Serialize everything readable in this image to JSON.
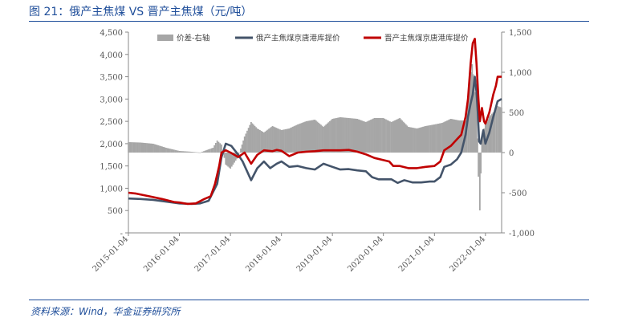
{
  "figure": {
    "title": "图 21：俄产主焦煤 VS 晋产主焦煤（元/吨）",
    "source": "资料来源：Wind，华金证券研究所"
  },
  "chart_data": {
    "type": "line",
    "legend": {
      "position": "top",
      "entries": [
        {
          "name": "价差-右轴",
          "kind": "bar",
          "color": "#a6a6a6"
        },
        {
          "name": "俄产主焦煤京唐港库提价",
          "kind": "line",
          "color": "#44546a"
        },
        {
          "name": "晋产主焦煤京唐港库提价",
          "kind": "line",
          "color": "#c00000"
        }
      ]
    },
    "x_axis": {
      "type": "date",
      "range": [
        "2015-01-04",
        "2022-04-30"
      ],
      "tick_labels": [
        "2015-01-04",
        "2016-01-04",
        "2017-01-04",
        "2018-01-04",
        "2019-01-04",
        "2020-01-04",
        "2021-01-04",
        "2022-01-04"
      ]
    },
    "y_axis_left": {
      "range": [
        0,
        4500
      ],
      "tick_labels": [
        "-",
        "500",
        "1,000",
        "1,500",
        "2,000",
        "2,500",
        "3,000",
        "3,500",
        "4,000",
        "4,500"
      ]
    },
    "y_axis_right": {
      "range": [
        -1000,
        1500
      ],
      "tick_labels": [
        "-1,000",
        "-500",
        "0",
        "500",
        "1,000",
        "1,500"
      ]
    },
    "grid": false,
    "series": [
      {
        "name": "俄产主焦煤京唐港库提价",
        "axis": "left",
        "color": "#44546a",
        "points": [
          [
            "2015-01-04",
            770
          ],
          [
            "2015-04-01",
            760
          ],
          [
            "2015-07-01",
            740
          ],
          [
            "2015-10-01",
            700
          ],
          [
            "2016-01-04",
            660
          ],
          [
            "2016-04-01",
            650
          ],
          [
            "2016-06-01",
            660
          ],
          [
            "2016-08-01",
            720
          ],
          [
            "2016-10-01",
            1100
          ],
          [
            "2016-11-01",
            1700
          ],
          [
            "2016-12-01",
            2000
          ],
          [
            "2017-01-10",
            1950
          ],
          [
            "2017-03-01",
            1750
          ],
          [
            "2017-04-01",
            1600
          ],
          [
            "2017-06-01",
            1180
          ],
          [
            "2017-07-15",
            1450
          ],
          [
            "2017-09-01",
            1600
          ],
          [
            "2017-10-15",
            1450
          ],
          [
            "2017-12-01",
            1550
          ],
          [
            "2018-01-04",
            1600
          ],
          [
            "2018-03-01",
            1480
          ],
          [
            "2018-05-01",
            1500
          ],
          [
            "2018-07-01",
            1450
          ],
          [
            "2018-09-01",
            1420
          ],
          [
            "2018-11-01",
            1550
          ],
          [
            "2019-01-04",
            1480
          ],
          [
            "2019-03-01",
            1420
          ],
          [
            "2019-05-01",
            1430
          ],
          [
            "2019-07-01",
            1400
          ],
          [
            "2019-09-01",
            1380
          ],
          [
            "2019-10-15",
            1250
          ],
          [
            "2019-12-01",
            1200
          ],
          [
            "2020-01-04",
            1200
          ],
          [
            "2020-03-01",
            1200
          ],
          [
            "2020-04-15",
            1120
          ],
          [
            "2020-06-01",
            1180
          ],
          [
            "2020-08-01",
            1130
          ],
          [
            "2020-10-01",
            1130
          ],
          [
            "2020-12-01",
            1150
          ],
          [
            "2021-01-04",
            1150
          ],
          [
            "2021-02-15",
            1250
          ],
          [
            "2021-03-15",
            1480
          ],
          [
            "2021-05-01",
            1530
          ],
          [
            "2021-06-15",
            1650
          ],
          [
            "2021-07-15",
            1800
          ],
          [
            "2021-08-15",
            2200
          ],
          [
            "2021-09-01",
            2600
          ],
          [
            "2021-09-20",
            2900
          ],
          [
            "2021-10-05",
            3100
          ],
          [
            "2021-10-20",
            3500
          ],
          [
            "2021-11-01",
            3150
          ],
          [
            "2021-11-10",
            2700
          ],
          [
            "2021-11-20",
            2050
          ],
          [
            "2021-12-01",
            2000
          ],
          [
            "2021-12-20",
            2300
          ],
          [
            "2022-01-04",
            2000
          ],
          [
            "2022-02-01",
            2250
          ],
          [
            "2022-03-01",
            2600
          ],
          [
            "2022-04-01",
            2950
          ],
          [
            "2022-04-30",
            3000
          ]
        ]
      },
      {
        "name": "晋产主焦煤京唐港库提价",
        "axis": "left",
        "color": "#c00000",
        "points": [
          [
            "2015-01-04",
            900
          ],
          [
            "2015-03-01",
            880
          ],
          [
            "2015-06-01",
            820
          ],
          [
            "2015-09-01",
            760
          ],
          [
            "2015-12-01",
            690
          ],
          [
            "2016-01-04",
            680
          ],
          [
            "2016-03-01",
            650
          ],
          [
            "2016-05-01",
            660
          ],
          [
            "2016-07-01",
            760
          ],
          [
            "2016-08-15",
            820
          ],
          [
            "2016-09-15",
            1100
          ],
          [
            "2016-10-15",
            1500
          ],
          [
            "2016-11-01",
            1800
          ],
          [
            "2016-12-01",
            1850
          ],
          [
            "2017-01-04",
            1800
          ],
          [
            "2017-03-01",
            1700
          ],
          [
            "2017-04-15",
            1800
          ],
          [
            "2017-06-01",
            1550
          ],
          [
            "2017-07-15",
            1750
          ],
          [
            "2017-09-01",
            1850
          ],
          [
            "2017-11-01",
            1830
          ],
          [
            "2017-12-01",
            1860
          ],
          [
            "2018-01-04",
            1840
          ],
          [
            "2018-03-01",
            1720
          ],
          [
            "2018-05-01",
            1800
          ],
          [
            "2018-07-01",
            1820
          ],
          [
            "2018-09-01",
            1830
          ],
          [
            "2018-11-01",
            1850
          ],
          [
            "2019-01-04",
            1850
          ],
          [
            "2019-03-01",
            1850
          ],
          [
            "2019-05-01",
            1860
          ],
          [
            "2019-07-01",
            1820
          ],
          [
            "2019-09-01",
            1760
          ],
          [
            "2019-11-01",
            1680
          ],
          [
            "2020-01-04",
            1630
          ],
          [
            "2020-02-15",
            1600
          ],
          [
            "2020-03-15",
            1500
          ],
          [
            "2020-05-01",
            1500
          ],
          [
            "2020-07-01",
            1450
          ],
          [
            "2020-09-01",
            1450
          ],
          [
            "2020-11-01",
            1480
          ],
          [
            "2021-01-04",
            1500
          ],
          [
            "2021-02-15",
            1600
          ],
          [
            "2021-03-15",
            1850
          ],
          [
            "2021-05-01",
            1950
          ],
          [
            "2021-06-15",
            2100
          ],
          [
            "2021-07-15",
            2200
          ],
          [
            "2021-08-15",
            2600
          ],
          [
            "2021-09-01",
            3000
          ],
          [
            "2021-09-20",
            3800
          ],
          [
            "2021-10-05",
            4250
          ],
          [
            "2021-10-20",
            4350
          ],
          [
            "2021-11-01",
            3800
          ],
          [
            "2021-11-15",
            3000
          ],
          [
            "2021-11-25",
            2500
          ],
          [
            "2021-12-10",
            2800
          ],
          [
            "2021-12-25",
            2500
          ],
          [
            "2022-01-04",
            2450
          ],
          [
            "2022-02-01",
            2700
          ],
          [
            "2022-03-01",
            3100
          ],
          [
            "2022-03-20",
            3300
          ],
          [
            "2022-04-01",
            3500
          ],
          [
            "2022-04-30",
            3500
          ]
        ]
      },
      {
        "name": "价差-右轴",
        "type": "bar",
        "axis": "right",
        "color": "#a6a6a6",
        "points": [
          [
            "2015-01-04",
            130
          ],
          [
            "2015-04-01",
            125
          ],
          [
            "2015-07-01",
            110
          ],
          [
            "2015-10-01",
            60
          ],
          [
            "2016-01-04",
            20
          ],
          [
            "2016-04-01",
            10
          ],
          [
            "2016-06-01",
            0
          ],
          [
            "2016-08-01",
            40
          ],
          [
            "2016-09-01",
            60
          ],
          [
            "2016-10-01",
            150
          ],
          [
            "2016-11-01",
            100
          ],
          [
            "2016-12-01",
            -150
          ],
          [
            "2017-01-04",
            -200
          ],
          [
            "2017-03-01",
            -50
          ],
          [
            "2017-04-15",
            200
          ],
          [
            "2017-06-01",
            380
          ],
          [
            "2017-07-15",
            300
          ],
          [
            "2017-09-01",
            250
          ],
          [
            "2017-11-01",
            330
          ],
          [
            "2018-01-04",
            280
          ],
          [
            "2018-03-01",
            300
          ],
          [
            "2018-05-01",
            350
          ],
          [
            "2018-07-01",
            390
          ],
          [
            "2018-09-01",
            410
          ],
          [
            "2018-11-01",
            320
          ],
          [
            "2019-01-04",
            420
          ],
          [
            "2019-03-01",
            440
          ],
          [
            "2019-05-01",
            430
          ],
          [
            "2019-07-01",
            420
          ],
          [
            "2019-09-01",
            380
          ],
          [
            "2019-11-01",
            430
          ],
          [
            "2020-01-04",
            430
          ],
          [
            "2020-03-01",
            380
          ],
          [
            "2020-05-01",
            430
          ],
          [
            "2020-07-01",
            320
          ],
          [
            "2020-09-01",
            300
          ],
          [
            "2020-11-01",
            330
          ],
          [
            "2021-01-04",
            350
          ],
          [
            "2021-03-01",
            370
          ],
          [
            "2021-05-01",
            420
          ],
          [
            "2021-07-01",
            400
          ],
          [
            "2021-08-15",
            400
          ],
          [
            "2021-09-15",
            900
          ],
          [
            "2021-10-01",
            1100
          ],
          [
            "2021-10-15",
            850
          ],
          [
            "2021-11-01",
            650
          ],
          [
            "2021-11-15",
            -300
          ],
          [
            "2021-11-25",
            -720
          ],
          [
            "2021-12-10",
            200
          ],
          [
            "2021-12-25",
            300
          ],
          [
            "2022-01-04",
            350
          ],
          [
            "2022-02-01",
            450
          ],
          [
            "2022-03-01",
            500
          ],
          [
            "2022-04-01",
            580
          ],
          [
            "2022-04-30",
            560
          ]
        ]
      }
    ]
  }
}
